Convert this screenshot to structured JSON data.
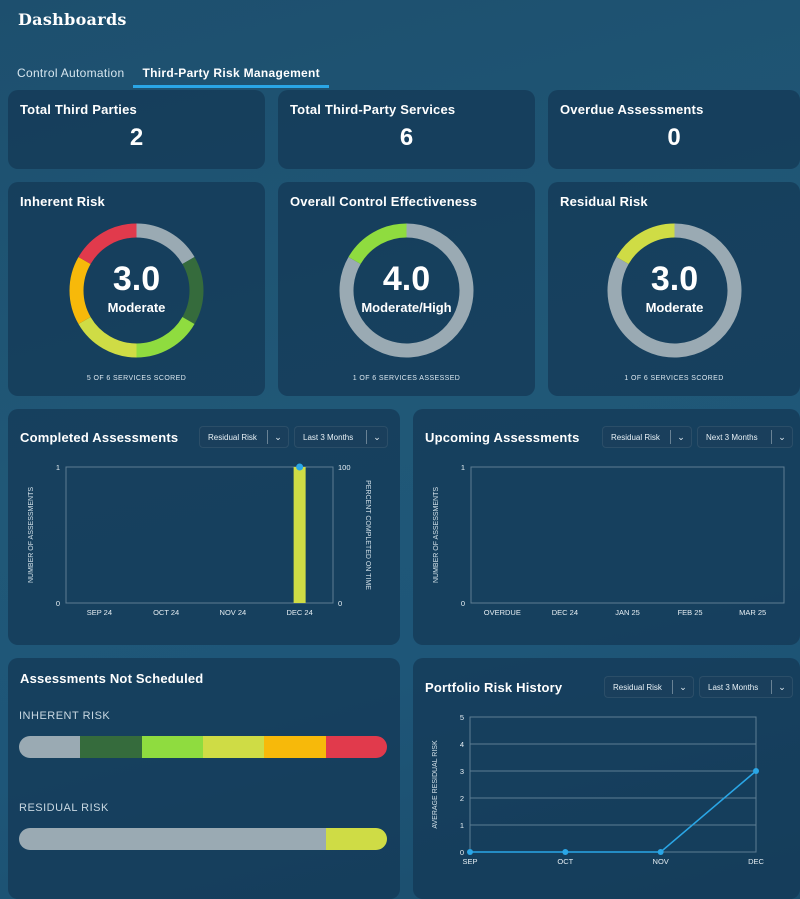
{
  "page": {
    "title": "Dashboards"
  },
  "tabs": [
    {
      "label": "Control Automation",
      "active": false
    },
    {
      "label": "Third-Party Risk Management",
      "active": true
    }
  ],
  "stats": {
    "total_third_parties": {
      "label": "Total Third Parties",
      "value": "2"
    },
    "total_services": {
      "label": "Total Third-Party Services",
      "value": "6"
    },
    "overdue": {
      "label": "Overdue Assessments",
      "value": "0"
    }
  },
  "donuts": {
    "inherent": {
      "title": "Inherent Risk",
      "value": "3.0",
      "rating": "Moderate",
      "footnote": "5 OF 6 SERVICES SCORED"
    },
    "control": {
      "title": "Overall Control Effectiveness",
      "value": "4.0",
      "rating": "Moderate/High",
      "footnote": "1 OF 6 SERVICES ASSESSED"
    },
    "residual": {
      "title": "Residual Risk",
      "value": "3.0",
      "rating": "Moderate",
      "footnote": "1 OF 6 SERVICES SCORED"
    }
  },
  "completed": {
    "title": "Completed Assessments",
    "filter1": "Residual Risk",
    "filter2": "Last 3 Months"
  },
  "upcoming": {
    "title": "Upcoming Assessments",
    "filter1": "Residual Risk",
    "filter2": "Next 3 Months"
  },
  "not_scheduled": {
    "title": "Assessments Not Scheduled",
    "inherent_label": "INHERENT RISK",
    "residual_label": "RESIDUAL RISK",
    "inherent_segments": [
      {
        "value": 1,
        "color": "#9aaab3"
      },
      {
        "value": 1,
        "color": "#356b3c"
      },
      {
        "value": 1,
        "color": "#8fdc3f"
      },
      {
        "value": 1,
        "color": "#cfdc45"
      },
      {
        "value": 1,
        "color": "#f7b90a"
      },
      {
        "value": 1,
        "color": "#e13a4c"
      }
    ],
    "residual_segments": [
      {
        "value": 5,
        "color": "#9aaab3"
      },
      {
        "value": 1,
        "color": "#cfdc45"
      }
    ]
  },
  "history": {
    "title": "Portfolio Risk History",
    "filter1": "Residual Risk",
    "filter2": "Last 3 Months"
  },
  "colors": {
    "gray": "#9aaab3",
    "red": "#e13a4c",
    "darkgreen": "#356b3c",
    "green": "#8fdc3f",
    "yellowgreen": "#cfdc45",
    "orange": "#f7b90a",
    "blue": "#2aa6e6"
  },
  "chart_data": [
    {
      "id": "completed",
      "type": "bar",
      "title": "Completed Assessments",
      "categories": [
        "SEP 24",
        "OCT 24",
        "NOV 24",
        "DEC 24"
      ],
      "values": [
        0,
        0,
        0,
        1
      ],
      "line_values": [
        0,
        0,
        0,
        100
      ],
      "ylabel": "NUMBER OF ASSESSMENTS",
      "y2label": "PERCENT COMPLETED ON TIME",
      "ylim": [
        0,
        1
      ],
      "y2lim": [
        0,
        100
      ],
      "y_ticks": [
        "0",
        "1"
      ],
      "y2_ticks": [
        "0",
        "100"
      ]
    },
    {
      "id": "upcoming",
      "type": "bar",
      "title": "Upcoming Assessments",
      "categories": [
        "OVERDUE",
        "DEC 24",
        "JAN 25",
        "FEB 25",
        "MAR 25"
      ],
      "values": [
        0,
        0,
        0,
        0,
        0
      ],
      "ylabel": "NUMBER OF ASSESSMENTS",
      "ylim": [
        0,
        1
      ],
      "y_ticks": [
        "0",
        "1"
      ]
    },
    {
      "id": "history",
      "type": "line",
      "title": "Portfolio Risk History",
      "categories": [
        "SEP",
        "OCT",
        "NOV",
        "DEC"
      ],
      "values": [
        0,
        0,
        0,
        3
      ],
      "ylabel": "AVERAGE RESIDUAL RISK",
      "ylim": [
        0,
        5
      ],
      "y_ticks": [
        "0",
        "1",
        "2",
        "3",
        "4",
        "5"
      ]
    },
    {
      "id": "inherent-donut",
      "type": "pie",
      "segments": [
        {
          "value": 1,
          "color": "#9aaab3"
        },
        {
          "value": 1,
          "color": "#356b3c"
        },
        {
          "value": 1,
          "color": "#8fdc3f"
        },
        {
          "value": 1,
          "color": "#cfdc45"
        },
        {
          "value": 1,
          "color": "#f7b90a"
        },
        {
          "value": 1,
          "color": "#e13a4c"
        }
      ]
    },
    {
      "id": "control-donut",
      "type": "pie",
      "segments": [
        {
          "value": 5,
          "color": "#9aaab3"
        },
        {
          "value": 1,
          "color": "#8fdc3f"
        }
      ]
    },
    {
      "id": "residual-donut",
      "type": "pie",
      "segments": [
        {
          "value": 5,
          "color": "#9aaab3"
        },
        {
          "value": 1,
          "color": "#cfdc45"
        }
      ]
    }
  ]
}
